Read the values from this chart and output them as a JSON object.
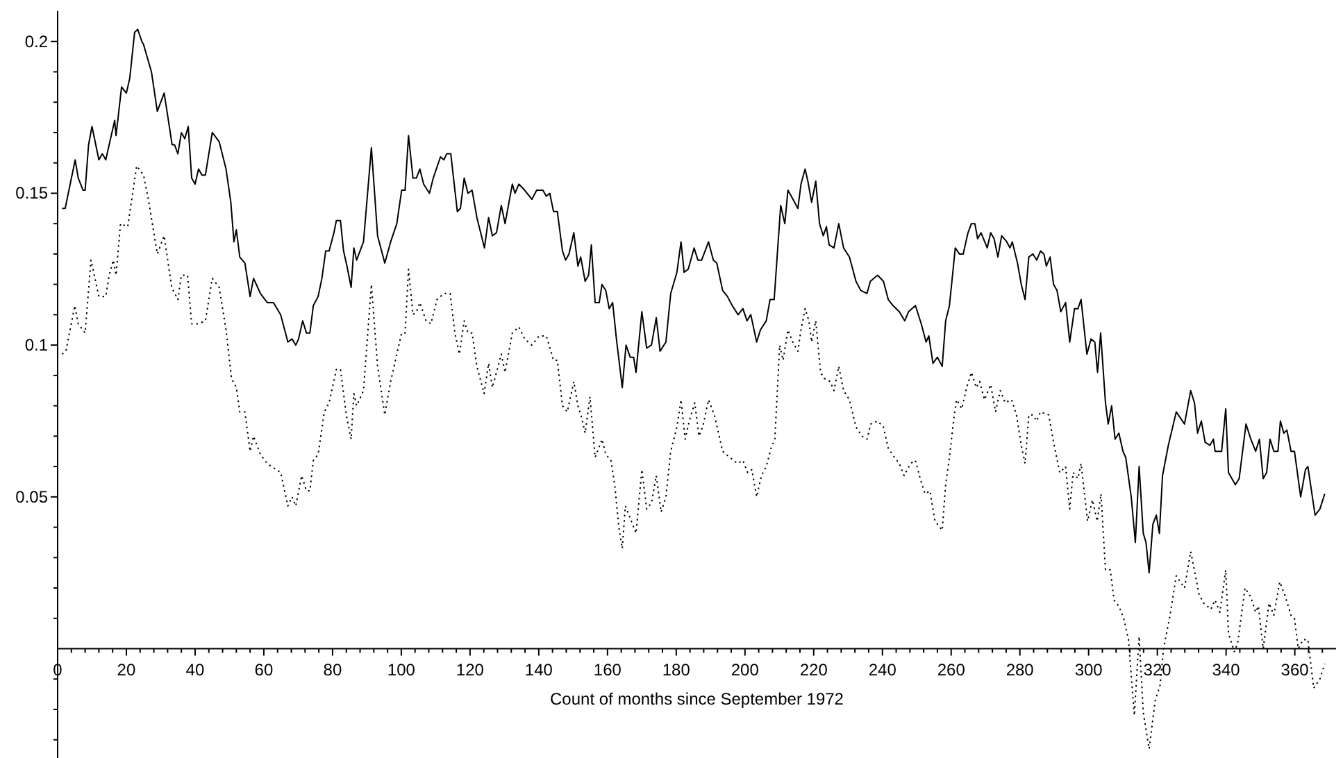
{
  "chart_data": {
    "type": "line",
    "xlabel": "Count of months since September 1972",
    "xlim": [
      0,
      372
    ],
    "ylim": [
      -0.036,
      0.21
    ],
    "xticks": [
      0,
      {
        "value": 4,
        "label": null
      },
      {
        "value": 8,
        "label": null
      },
      {
        "value": 12,
        "label": null
      },
      {
        "value": 16,
        "label": null
      },
      20,
      {
        "value": 24,
        "label": null
      },
      {
        "value": 28,
        "label": null
      },
      {
        "value": 32,
        "label": null
      },
      {
        "value": 36,
        "label": null
      },
      40,
      {
        "value": 44,
        "label": null
      },
      {
        "value": 48,
        "label": null
      },
      {
        "value": 52,
        "label": null
      },
      {
        "value": 56,
        "label": null
      },
      60,
      {
        "value": 64,
        "label": null
      },
      {
        "value": 68,
        "label": null
      },
      {
        "value": 72,
        "label": null
      },
      {
        "value": 76,
        "label": null
      },
      80,
      {
        "value": 84,
        "label": null
      },
      {
        "value": 88,
        "label": null
      },
      {
        "value": 92,
        "label": null
      },
      {
        "value": 96,
        "label": null
      },
      100,
      {
        "value": 104,
        "label": null
      },
      {
        "value": 108,
        "label": null
      },
      {
        "value": 112,
        "label": null
      },
      {
        "value": 116,
        "label": null
      },
      120,
      {
        "value": 124,
        "label": null
      },
      {
        "value": 128,
        "label": null
      },
      {
        "value": 132,
        "label": null
      },
      {
        "value": 136,
        "label": null
      },
      140,
      {
        "value": 144,
        "label": null
      },
      {
        "value": 148,
        "label": null
      },
      {
        "value": 152,
        "label": null
      },
      {
        "value": 156,
        "label": null
      },
      160,
      {
        "value": 164,
        "label": null
      },
      {
        "value": 168,
        "label": null
      },
      {
        "value": 172,
        "label": null
      },
      {
        "value": 176,
        "label": null
      },
      180,
      {
        "value": 184,
        "label": null
      },
      {
        "value": 188,
        "label": null
      },
      {
        "value": 192,
        "label": null
      },
      {
        "value": 196,
        "label": null
      },
      200,
      {
        "value": 204,
        "label": null
      },
      {
        "value": 208,
        "label": null
      },
      {
        "value": 212,
        "label": null
      },
      {
        "value": 216,
        "label": null
      },
      220,
      {
        "value": 224,
        "label": null
      },
      {
        "value": 228,
        "label": null
      },
      {
        "value": 232,
        "label": null
      },
      {
        "value": 236,
        "label": null
      },
      240,
      {
        "value": 244,
        "label": null
      },
      {
        "value": 248,
        "label": null
      },
      {
        "value": 252,
        "label": null
      },
      {
        "value": 256,
        "label": null
      },
      260,
      {
        "value": 264,
        "label": null
      },
      {
        "value": 268,
        "label": null
      },
      {
        "value": 272,
        "label": null
      },
      {
        "value": 276,
        "label": null
      },
      280,
      {
        "value": 284,
        "label": null
      },
      {
        "value": 288,
        "label": null
      },
      {
        "value": 292,
        "label": null
      },
      {
        "value": 296,
        "label": null
      },
      300,
      {
        "value": 304,
        "label": null
      },
      {
        "value": 308,
        "label": null
      },
      {
        "value": 312,
        "label": null
      },
      {
        "value": 316,
        "label": null
      },
      320,
      {
        "value": 324,
        "label": null
      },
      {
        "value": 328,
        "label": null
      },
      {
        "value": 332,
        "label": null
      },
      {
        "value": 336,
        "label": null
      },
      340,
      {
        "value": 344,
        "label": null
      },
      {
        "value": 348,
        "label": null
      },
      {
        "value": 352,
        "label": null
      },
      {
        "value": 356,
        "label": null
      },
      360,
      {
        "value": 364,
        "label": null
      },
      {
        "value": 368,
        "label": null
      }
    ],
    "yticks": [
      {
        "value": -0.03,
        "label": null
      },
      {
        "value": -0.02,
        "label": null
      },
      {
        "value": -0.01,
        "label": null
      },
      {
        "value": 0.01,
        "label": null
      },
      {
        "value": 0.02,
        "label": null
      },
      {
        "value": 0.03,
        "label": null
      },
      {
        "value": 0.04,
        "label": null
      },
      0.05,
      {
        "value": 0.06,
        "label": null
      },
      {
        "value": 0.07,
        "label": null
      },
      {
        "value": 0.08,
        "label": null
      },
      {
        "value": 0.09,
        "label": null
      },
      0.1,
      {
        "value": 0.11,
        "label": null
      },
      {
        "value": 0.12,
        "label": null
      },
      {
        "value": 0.13,
        "label": null
      },
      {
        "value": 0.14,
        "label": null
      },
      0.15,
      {
        "value": 0.16,
        "label": null
      },
      {
        "value": 0.17,
        "label": null
      },
      {
        "value": 0.18,
        "label": null
      },
      {
        "value": 0.19,
        "label": null
      },
      0.2
    ],
    "series": [
      {
        "color": "#000000",
        "line_style": "solid",
        "x": [
          1.3,
          2.2,
          5.1,
          6,
          7.4,
          8,
          9,
          10,
          12,
          13,
          14,
          16.6,
          17,
          18.6,
          20,
          21,
          22.4,
          23.3,
          24.5,
          25,
          27.3,
          29,
          31,
          32.5,
          33.3,
          34,
          35,
          36,
          37,
          38,
          39,
          40,
          41,
          42,
          43,
          45,
          47,
          49,
          50.4,
          51.3,
          52,
          53,
          54.5,
          56,
          57,
          59,
          61,
          62.8,
          64.9,
          67,
          68.2,
          69.3,
          70.1,
          71.3,
          72.4,
          73.4,
          74.4,
          75.8,
          76.9,
          78,
          79,
          80.4,
          81.1,
          82.3,
          83.2,
          84.2,
          85.4,
          86.2,
          87,
          89,
          91.3,
          93.1,
          95.2,
          96.9,
          98.7,
          100.1,
          101.1,
          102.1,
          103.4,
          104.4,
          105.4,
          106.5,
          108.2,
          109.3,
          111.4,
          112.4,
          113.2,
          114.4,
          115.2,
          116.3,
          117.2,
          118.3,
          119.4,
          120.6,
          122,
          124.2,
          125.4,
          126.5,
          127.7,
          129.1,
          130.2,
          132.3,
          133.1,
          134.2,
          135.9,
          138,
          139.4,
          141.2,
          142.2,
          143.2,
          144.3,
          145.4,
          146.9,
          147.8,
          148.8,
          150.2,
          151.4,
          152.2,
          153.5,
          154.5,
          155.3,
          156.4,
          157.6,
          158.4,
          159.5,
          160.5,
          161.5,
          162.6,
          164.3,
          165.4,
          166.6,
          167.6,
          168.3,
          170,
          171.4,
          172.8,
          174.2,
          175.3,
          177,
          178.4,
          180.2,
          181.4,
          182.3,
          183.5,
          185.2,
          186.3,
          187.4,
          189.4,
          190.8,
          191.8,
          193.5,
          194.9,
          196.3,
          198,
          199.4,
          200.6,
          201.7,
          203.4,
          204.5,
          206.2,
          207.3,
          208.5,
          210.4,
          211.6,
          212.5,
          213.5,
          215.4,
          216.3,
          217.5,
          218.3,
          219.4,
          220.6,
          221.7,
          222.8,
          223.7,
          224.5,
          225.9,
          227.3,
          228.7,
          230.4,
          232.3,
          233.7,
          235.5,
          236.5,
          237.5,
          238.6,
          240.3,
          241.7,
          243.1,
          244.9,
          246.5,
          247.6,
          249.6,
          251.3,
          252.7,
          253.5,
          254.7,
          256,
          257.4,
          258.4,
          259.5,
          261.2,
          262.4,
          263.5,
          264.9,
          265.9,
          266.9,
          267.7,
          268.7,
          270.5,
          271.5,
          272.5,
          273.6,
          274.7,
          276.2,
          277.1,
          277.8,
          279.3,
          280.4,
          281.5,
          282.6,
          283.8,
          284.9,
          286,
          287,
          287.7,
          288.8,
          289.8,
          290.8,
          291.9,
          293.3,
          294.5,
          295.9,
          296.9,
          297.8,
          299.5,
          300.7,
          301.8,
          302.6,
          303.5,
          304.9,
          305.7,
          306.7,
          307.7,
          308.8,
          310,
          310.8,
          312.4,
          313.6,
          314.7,
          315.9,
          316.7,
          317.6,
          318.7,
          319.7,
          320.6,
          321.5,
          323.2,
          325.5,
          327.9,
          329.7,
          330.8,
          331.7,
          332.8,
          333.9,
          335.3,
          336.3,
          336.8,
          337.9,
          338.7,
          339.9,
          340.7,
          342.7,
          343.8,
          345.8,
          347.2,
          348.6,
          349.7,
          350.8,
          351.8,
          352.8,
          353.9,
          355.1,
          355.8,
          356.8,
          357.7,
          358.9,
          359.9,
          361.7,
          363.1,
          363.8,
          365.9,
          367.3,
          368.7
        ],
        "values": [
          0.145,
          0.145,
          0.161,
          0.155,
          0.151,
          0.151,
          0.166,
          0.172,
          0.161,
          0.163,
          0.161,
          0.174,
          0.169,
          0.185,
          0.183,
          0.188,
          0.203,
          0.204,
          0.2,
          0.199,
          0.19,
          0.177,
          0.183,
          0.172,
          0.166,
          0.166,
          0.163,
          0.17,
          0.168,
          0.172,
          0.155,
          0.153,
          0.158,
          0.156,
          0.156,
          0.17,
          0.167,
          0.158,
          0.147,
          0.134,
          0.138,
          0.129,
          0.127,
          0.116,
          0.122,
          0.117,
          0.114,
          0.114,
          0.11,
          0.101,
          0.102,
          0.1,
          0.102,
          0.108,
          0.104,
          0.104,
          0.113,
          0.116,
          0.122,
          0.131,
          0.131,
          0.137,
          0.141,
          0.141,
          0.131,
          0.126,
          0.119,
          0.132,
          0.128,
          0.134,
          0.165,
          0.136,
          0.127,
          0.134,
          0.14,
          0.151,
          0.151,
          0.169,
          0.155,
          0.155,
          0.158,
          0.153,
          0.15,
          0.155,
          0.162,
          0.161,
          0.163,
          0.163,
          0.155,
          0.144,
          0.145,
          0.155,
          0.15,
          0.151,
          0.142,
          0.132,
          0.142,
          0.136,
          0.137,
          0.146,
          0.14,
          0.153,
          0.15,
          0.153,
          0.151,
          0.148,
          0.151,
          0.151,
          0.149,
          0.15,
          0.144,
          0.144,
          0.131,
          0.128,
          0.13,
          0.137,
          0.126,
          0.129,
          0.121,
          0.123,
          0.133,
          0.114,
          0.114,
          0.12,
          0.118,
          0.112,
          0.114,
          0.102,
          0.086,
          0.1,
          0.096,
          0.096,
          0.091,
          0.111,
          0.099,
          0.1,
          0.109,
          0.098,
          0.101,
          0.117,
          0.124,
          0.134,
          0.124,
          0.125,
          0.132,
          0.128,
          0.128,
          0.134,
          0.128,
          0.127,
          0.118,
          0.116,
          0.113,
          0.11,
          0.112,
          0.108,
          0.11,
          0.101,
          0.105,
          0.108,
          0.115,
          0.115,
          0.146,
          0.14,
          0.151,
          0.149,
          0.145,
          0.153,
          0.158,
          0.154,
          0.147,
          0.154,
          0.14,
          0.136,
          0.139,
          0.133,
          0.132,
          0.14,
          0.132,
          0.129,
          0.121,
          0.118,
          0.117,
          0.121,
          0.122,
          0.123,
          0.121,
          0.115,
          0.113,
          0.111,
          0.108,
          0.111,
          0.113,
          0.107,
          0.101,
          0.103,
          0.094,
          0.096,
          0.093,
          0.108,
          0.113,
          0.132,
          0.13,
          0.13,
          0.137,
          0.14,
          0.14,
          0.135,
          0.137,
          0.132,
          0.137,
          0.135,
          0.129,
          0.136,
          0.134,
          0.132,
          0.134,
          0.127,
          0.12,
          0.115,
          0.129,
          0.13,
          0.128,
          0.131,
          0.13,
          0.126,
          0.129,
          0.12,
          0.118,
          0.111,
          0.114,
          0.101,
          0.112,
          0.112,
          0.115,
          0.097,
          0.102,
          0.101,
          0.091,
          0.104,
          0.081,
          0.074,
          0.08,
          0.069,
          0.071,
          0.065,
          0.063,
          0.05,
          0.035,
          0.06,
          0.038,
          0.035,
          0.025,
          0.041,
          0.044,
          0.038,
          0.057,
          0.067,
          0.078,
          0.074,
          0.085,
          0.081,
          0.071,
          0.075,
          0.068,
          0.067,
          0.069,
          0.065,
          0.065,
          0.065,
          0.079,
          0.058,
          0.054,
          0.056,
          0.074,
          0.069,
          0.065,
          0.069,
          0.056,
          0.058,
          0.069,
          0.065,
          0.065,
          0.075,
          0.071,
          0.072,
          0.065,
          0.065,
          0.05,
          0.059,
          0.06,
          0.044,
          0.046,
          0.051
        ]
      },
      {
        "color": "#000000",
        "line_style": "dotted",
        "x": [
          1.3,
          2.4,
          5,
          6,
          8,
          9.7,
          12,
          14,
          15,
          16.2,
          17,
          18.3,
          20.4,
          23,
          25,
          26.4,
          29,
          31,
          33.2,
          35,
          36,
          37.8,
          39,
          41,
          43,
          45,
          47,
          49,
          50.6,
          52,
          53,
          54.5,
          56,
          57,
          59,
          61,
          64.9,
          67,
          68.2,
          69.3,
          71,
          72.4,
          73.4,
          74.4,
          75.8,
          77.6,
          79,
          81.1,
          82.3,
          84,
          85.4,
          86.2,
          87,
          89,
          91.3,
          93.1,
          95.2,
          96.9,
          98.7,
          100.1,
          101.1,
          102.1,
          103.4,
          104.4,
          105.4,
          107.2,
          108.6,
          110.4,
          112.4,
          114.2,
          115.6,
          116.9,
          118.3,
          119.4,
          120.6,
          122,
          124.1,
          125.4,
          126.5,
          127.7,
          129.1,
          130.2,
          132.3,
          134.2,
          135.9,
          138,
          140.1,
          142.2,
          144.3,
          145.4,
          146.9,
          148.3,
          150.2,
          151.4,
          152.5,
          153.5,
          154.9,
          156.4,
          158.4,
          159.5,
          161,
          162.1,
          163.3,
          164.3,
          165.2,
          166.6,
          168.3,
          170,
          171.4,
          172.8,
          174.2,
          175.6,
          177,
          178.4,
          180.2,
          181.4,
          182.6,
          183.8,
          185.4,
          186.6,
          187.7,
          189.4,
          191.1,
          193.5,
          195.6,
          197.8,
          199.4,
          200.8,
          202,
          203.4,
          204.8,
          206.2,
          207.6,
          208.7,
          210.1,
          211.1,
          212.5,
          213.9,
          215.4,
          216.3,
          217.5,
          218.6,
          219.4,
          220.6,
          222,
          223.1,
          224.8,
          225.9,
          227.3,
          228.7,
          230.4,
          232.3,
          234.1,
          235.5,
          236.6,
          238.6,
          240.3,
          241.7,
          243.5,
          244.9,
          246.3,
          248.2,
          249.6,
          251,
          252.4,
          253.8,
          255.3,
          257.4,
          258.4,
          259.5,
          260.9,
          261.6,
          263.1,
          264.5,
          265.9,
          267.3,
          268.3,
          269.7,
          271.5,
          272.9,
          274.3,
          275.7,
          277.6,
          279,
          280.4,
          281.5,
          282.6,
          283.8,
          284.9,
          286,
          288.4,
          289.8,
          291.6,
          293.3,
          294.5,
          295.5,
          296.9,
          297.8,
          299.7,
          301.1,
          302.5,
          303.6,
          304.9,
          306.3,
          307.4,
          308.8,
          310.2,
          311.6,
          313.3,
          314.7,
          315.9,
          317.6,
          319.4,
          320.8,
          321.8,
          323.7,
          325.5,
          327.9,
          329.7,
          331.1,
          332.1,
          333.5,
          335.6,
          336.8,
          338.2,
          339.9,
          340.7,
          342.4,
          343.4,
          345.5,
          347.2,
          348.6,
          349.4,
          350.8,
          352.5,
          353.9,
          355.6,
          357,
          358.9,
          359.9,
          361,
          362.4,
          363.8,
          365.5,
          367.3,
          368.7
        ],
        "values": [
          0.097,
          0.098,
          0.113,
          0.107,
          0.104,
          0.128,
          0.116,
          0.116,
          0.123,
          0.128,
          0.123,
          0.14,
          0.139,
          0.159,
          0.156,
          0.148,
          0.13,
          0.136,
          0.119,
          0.115,
          0.123,
          0.123,
          0.107,
          0.107,
          0.108,
          0.122,
          0.119,
          0.105,
          0.089,
          0.086,
          0.078,
          0.078,
          0.065,
          0.07,
          0.064,
          0.061,
          0.058,
          0.047,
          0.05,
          0.047,
          0.057,
          0.052,
          0.052,
          0.062,
          0.064,
          0.078,
          0.081,
          0.092,
          0.092,
          0.077,
          0.069,
          0.084,
          0.08,
          0.085,
          0.12,
          0.093,
          0.077,
          0.088,
          0.097,
          0.104,
          0.104,
          0.125,
          0.11,
          0.111,
          0.114,
          0.108,
          0.107,
          0.115,
          0.117,
          0.117,
          0.104,
          0.097,
          0.108,
          0.104,
          0.104,
          0.093,
          0.084,
          0.094,
          0.086,
          0.091,
          0.097,
          0.091,
          0.104,
          0.106,
          0.102,
          0.1,
          0.103,
          0.103,
          0.095,
          0.095,
          0.08,
          0.078,
          0.088,
          0.08,
          0.076,
          0.071,
          0.083,
          0.063,
          0.069,
          0.064,
          0.062,
          0.054,
          0.04,
          0.033,
          0.047,
          0.043,
          0.038,
          0.059,
          0.046,
          0.048,
          0.057,
          0.045,
          0.05,
          0.065,
          0.073,
          0.082,
          0.069,
          0.075,
          0.081,
          0.07,
          0.073,
          0.082,
          0.077,
          0.065,
          0.063,
          0.061,
          0.062,
          0.058,
          0.059,
          0.05,
          0.057,
          0.06,
          0.066,
          0.069,
          0.1,
          0.095,
          0.105,
          0.101,
          0.098,
          0.105,
          0.112,
          0.108,
          0.101,
          0.108,
          0.091,
          0.089,
          0.088,
          0.085,
          0.093,
          0.085,
          0.082,
          0.073,
          0.07,
          0.069,
          0.074,
          0.075,
          0.073,
          0.066,
          0.063,
          0.061,
          0.057,
          0.061,
          0.062,
          0.056,
          0.051,
          0.052,
          0.042,
          0.039,
          0.054,
          0.063,
          0.077,
          0.082,
          0.079,
          0.086,
          0.091,
          0.086,
          0.088,
          0.082,
          0.087,
          0.078,
          0.085,
          0.081,
          0.082,
          0.077,
          0.067,
          0.061,
          0.077,
          0.077,
          0.075,
          0.078,
          0.077,
          0.068,
          0.058,
          0.06,
          0.046,
          0.058,
          0.056,
          0.061,
          0.042,
          0.049,
          0.042,
          0.051,
          0.026,
          0.026,
          0.016,
          0.014,
          0.01,
          0.003,
          -0.022,
          0.004,
          -0.021,
          -0.033,
          -0.017,
          -0.012,
          0,
          0.011,
          0.024,
          0.02,
          0.032,
          0.024,
          0.018,
          0.015,
          0.013,
          0.016,
          0.012,
          0.026,
          0.005,
          -0.001,
          0.002,
          0.02,
          0.017,
          0.012,
          0.014,
          0,
          0.015,
          0.011,
          0.022,
          0.018,
          0.011,
          0.01,
          0,
          0.003,
          0.003,
          -0.013,
          -0.01,
          -0.005
        ]
      }
    ]
  }
}
